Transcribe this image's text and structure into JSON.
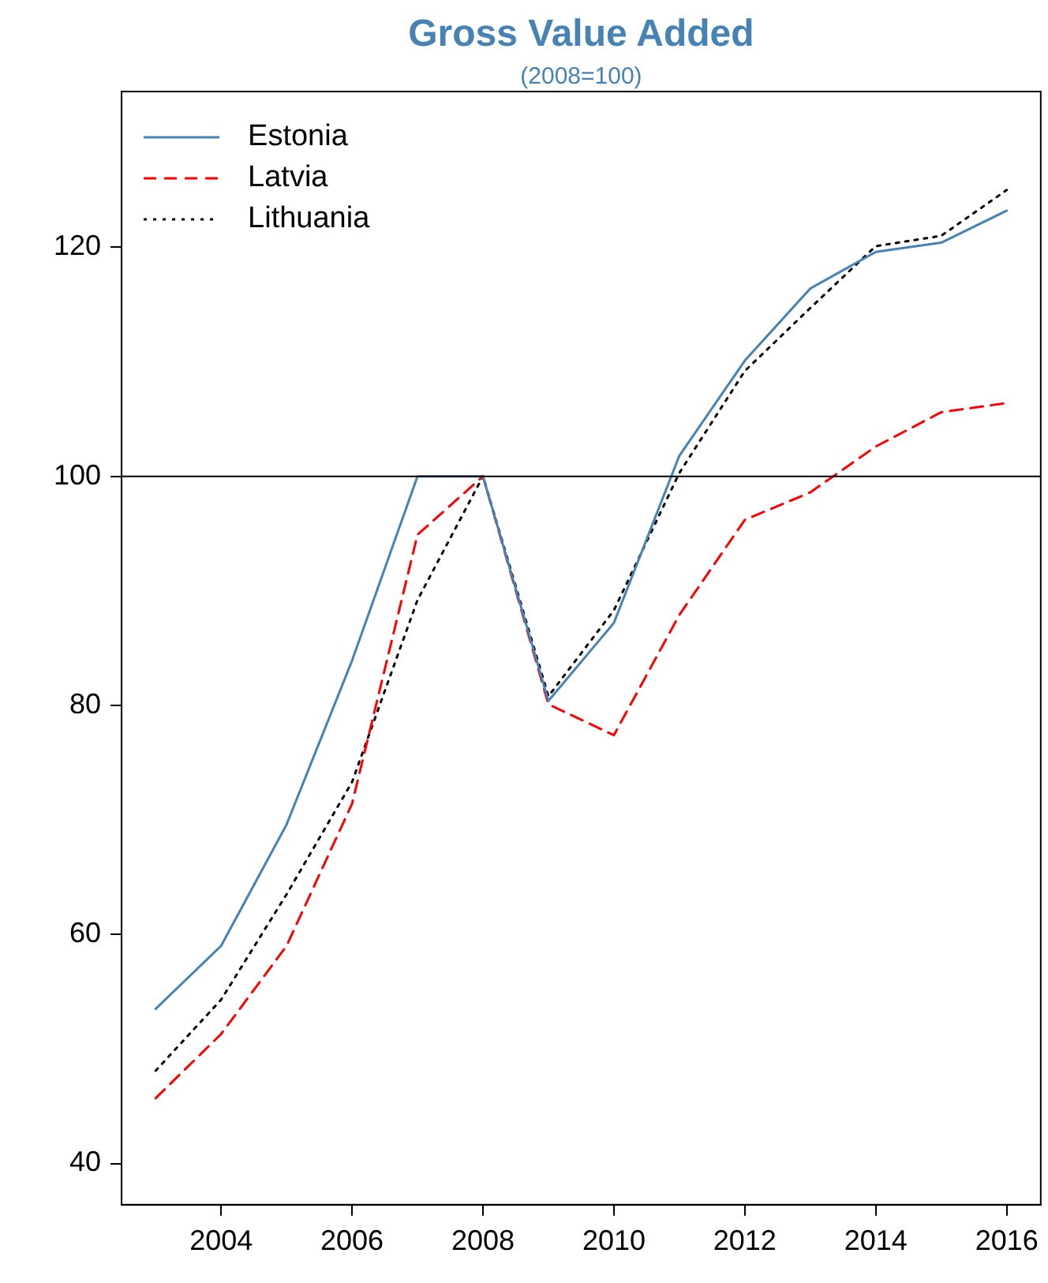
{
  "chart_data": {
    "type": "line",
    "title": "Gross Value Added",
    "subtitle": "(2008=100)",
    "x": [
      2003,
      2004,
      2005,
      2006,
      2007,
      2008,
      2009,
      2010,
      2011,
      2012,
      2013,
      2014,
      2015,
      2016
    ],
    "series": [
      {
        "name": "Estonia",
        "color": "#4682b4",
        "line_style": "solid",
        "values": [
          53.5,
          59.0,
          69.6,
          83.9,
          100,
          100,
          80.4,
          87.2,
          101.8,
          110.1,
          116.4,
          119.6,
          120.4,
          123.2
        ]
      },
      {
        "name": "Latvia",
        "color": "#ff0000",
        "line_style": "dashed",
        "values": [
          45.7,
          51.3,
          59.0,
          71.4,
          94.9,
          100,
          80.1,
          77.4,
          87.9,
          96.2,
          98.6,
          102.6,
          105.6,
          106.4
        ]
      },
      {
        "name": "Lithuania",
        "color": "#000000",
        "line_style": "dotted",
        "values": [
          48.1,
          54.3,
          63.5,
          73.3,
          89.2,
          100,
          80.8,
          88.3,
          100.3,
          109.2,
          114.7,
          120.1,
          121.0,
          125.0
        ]
      }
    ],
    "xlim": [
      2002.48,
      2016.52
    ],
    "xticks": [
      2004,
      2006,
      2008,
      2010,
      2012,
      2014,
      2016
    ],
    "ylim": [
      36.4,
      133.6
    ],
    "yticks": [
      40,
      60,
      80,
      100,
      120
    ],
    "ref_lines": [
      {
        "axis": "y",
        "value": 100,
        "label": null,
        "color": "#000000"
      }
    ],
    "legend": "top left",
    "grid": false,
    "marker": "none"
  }
}
